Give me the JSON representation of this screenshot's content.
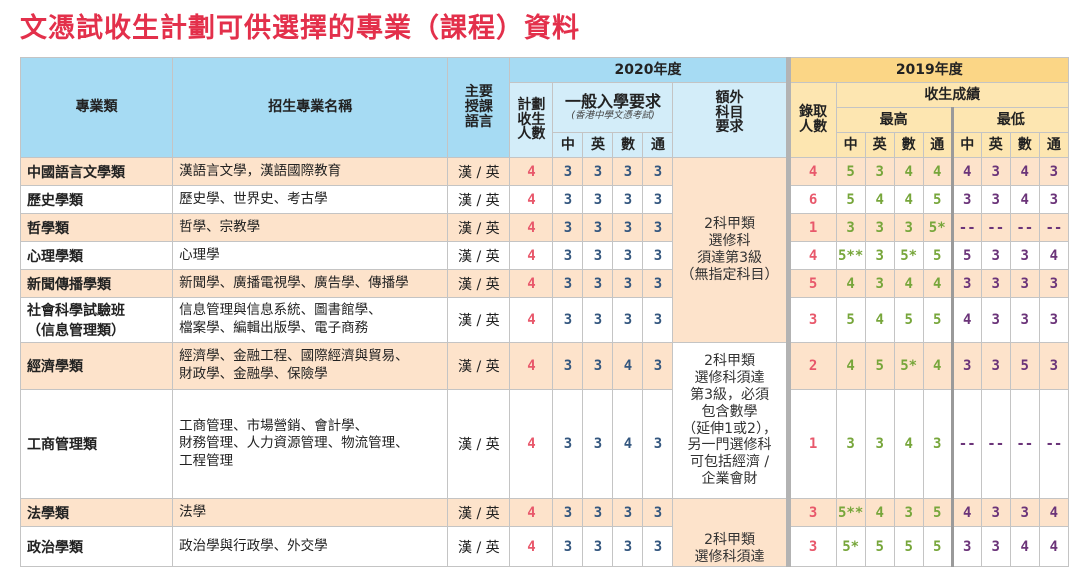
{
  "title": "文憑試收生計劃可供選擇的專業（課程）資料",
  "header": {
    "category": "專業類",
    "majors": "招生專業名稱",
    "language": "主要授課語言",
    "year2020": "2020年度",
    "planned": "計劃收生人數",
    "general_req": "一般入學要求",
    "general_req_note": "(香港中學文憑考試)",
    "extra_req": "額外科目要求",
    "year2019": "2019年度",
    "admitted": "錄取人數",
    "scores": "收生成績",
    "highest": "最高",
    "lowest": "最低",
    "subjects": [
      "中",
      "英",
      "數",
      "通"
    ]
  },
  "extra_groups": [
    {
      "text": "2科甲類\n選修科\n須達第3級\n（無指定科目）"
    },
    {
      "text": "2科甲類\n選修科須達\n第3級，必須\n包含數學\n（延伸1或2），\n另一門選修科\n可包括經濟 /\n企業會財"
    },
    {
      "text": "2科甲類\n選修科須達"
    }
  ],
  "rows": [
    {
      "category": "中國語言文學類",
      "majors": "漢語言文學，漢語國際教育",
      "language": "漢 / 英",
      "planned": "4",
      "req": [
        "3",
        "3",
        "3",
        "3"
      ],
      "admitted": "4",
      "highest": [
        "5",
        "3",
        "4",
        "4"
      ],
      "lowest": [
        "4",
        "3",
        "4",
        "3"
      ]
    },
    {
      "category": "歷史學類",
      "majors": "歷史學、世界史、考古學",
      "language": "漢 / 英",
      "planned": "4",
      "req": [
        "3",
        "3",
        "3",
        "3"
      ],
      "admitted": "6",
      "highest": [
        "5",
        "4",
        "4",
        "5"
      ],
      "lowest": [
        "3",
        "3",
        "4",
        "3"
      ]
    },
    {
      "category": "哲學類",
      "majors": "哲學、宗教學",
      "language": "漢 / 英",
      "planned": "4",
      "req": [
        "3",
        "3",
        "3",
        "3"
      ],
      "admitted": "1",
      "highest": [
        "3",
        "3",
        "3",
        "5*"
      ],
      "lowest": [
        "--",
        "--",
        "--",
        "--"
      ]
    },
    {
      "category": "心理學類",
      "majors": "心理學",
      "language": "漢 / 英",
      "planned": "4",
      "req": [
        "3",
        "3",
        "3",
        "3"
      ],
      "admitted": "4",
      "highest": [
        "5**",
        "3",
        "5*",
        "5"
      ],
      "lowest": [
        "5",
        "3",
        "3",
        "4"
      ]
    },
    {
      "category": "新聞傳播學類",
      "majors": "新聞學、廣播電視學、廣告學、傳播學",
      "language": "漢 / 英",
      "planned": "4",
      "req": [
        "3",
        "3",
        "3",
        "3"
      ],
      "admitted": "5",
      "highest": [
        "4",
        "3",
        "4",
        "4"
      ],
      "lowest": [
        "3",
        "3",
        "3",
        "3"
      ]
    },
    {
      "category": "社會科學試驗班\n（信息管理類）",
      "majors": "信息管理與信息系統、圖書館學、\n檔案學、編輯出版學、電子商務",
      "language": "漢 / 英",
      "planned": "4",
      "req": [
        "3",
        "3",
        "3",
        "3"
      ],
      "admitted": "3",
      "highest": [
        "5",
        "4",
        "5",
        "5"
      ],
      "lowest": [
        "4",
        "3",
        "3",
        "3"
      ]
    },
    {
      "category": "經濟學類",
      "majors": "經濟學、金融工程、國際經濟與貿易、\n財政學、金融學、保險學",
      "language": "漢 / 英",
      "planned": "4",
      "req": [
        "3",
        "3",
        "4",
        "3"
      ],
      "admitted": "2",
      "highest": [
        "4",
        "5",
        "5*",
        "4"
      ],
      "lowest": [
        "3",
        "3",
        "5",
        "3"
      ]
    },
    {
      "category": "工商管理類",
      "majors": "工商管理、市場營銷、會計學、\n財務管理、人力資源管理、物流管理、\n工程管理",
      "language": "漢 / 英",
      "planned": "4",
      "req": [
        "3",
        "3",
        "4",
        "3"
      ],
      "admitted": "1",
      "highest": [
        "3",
        "3",
        "4",
        "3"
      ],
      "lowest": [
        "--",
        "--",
        "--",
        "--"
      ]
    },
    {
      "category": "法學類",
      "majors": "法學",
      "language": "漢 / 英",
      "planned": "4",
      "req": [
        "3",
        "3",
        "3",
        "3"
      ],
      "admitted": "3",
      "highest": [
        "5**",
        "4",
        "3",
        "5"
      ],
      "lowest": [
        "4",
        "3",
        "3",
        "4"
      ]
    },
    {
      "category": "政治學類",
      "majors": "政治學與行政學、外交學",
      "language": "漢 / 英",
      "planned": "4",
      "req": [
        "3",
        "3",
        "3",
        "3"
      ],
      "admitted": "3",
      "highest": [
        "5*",
        "5",
        "5",
        "5"
      ],
      "lowest": [
        "3",
        "3",
        "4",
        "4"
      ]
    }
  ],
  "colors": {
    "title": "#e3304b",
    "header_2020": "#a6dbf3",
    "header_2019": "#fbd686",
    "row_alt": "#fde3cb",
    "planned": "#e8586b",
    "requirement": "#34577f",
    "highest": "#77a63b",
    "lowest": "#6b3479"
  }
}
